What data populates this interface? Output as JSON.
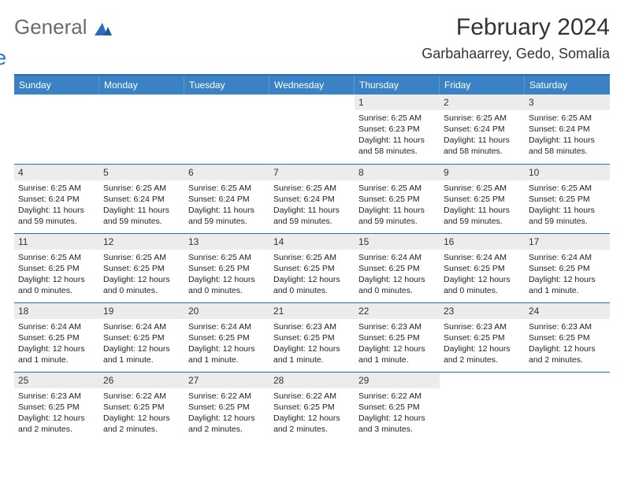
{
  "logo": {
    "text1": "General",
    "text2": "Blue",
    "accent": "#2a6db8",
    "gray": "#6b6b6b"
  },
  "title": "February 2024",
  "location": "Garbahaarrey, Gedo, Somalia",
  "header_bg": "#3b82c4",
  "border_color": "#2a6db8",
  "daynum_bg": "#ececec",
  "weekdays": [
    "Sunday",
    "Monday",
    "Tuesday",
    "Wednesday",
    "Thursday",
    "Friday",
    "Saturday"
  ],
  "days": [
    null,
    null,
    null,
    null,
    {
      "n": "1",
      "sr": "Sunrise: 6:25 AM",
      "ss": "Sunset: 6:23 PM",
      "dl": "Daylight: 11 hours and 58 minutes."
    },
    {
      "n": "2",
      "sr": "Sunrise: 6:25 AM",
      "ss": "Sunset: 6:24 PM",
      "dl": "Daylight: 11 hours and 58 minutes."
    },
    {
      "n": "3",
      "sr": "Sunrise: 6:25 AM",
      "ss": "Sunset: 6:24 PM",
      "dl": "Daylight: 11 hours and 58 minutes."
    },
    {
      "n": "4",
      "sr": "Sunrise: 6:25 AM",
      "ss": "Sunset: 6:24 PM",
      "dl": "Daylight: 11 hours and 59 minutes."
    },
    {
      "n": "5",
      "sr": "Sunrise: 6:25 AM",
      "ss": "Sunset: 6:24 PM",
      "dl": "Daylight: 11 hours and 59 minutes."
    },
    {
      "n": "6",
      "sr": "Sunrise: 6:25 AM",
      "ss": "Sunset: 6:24 PM",
      "dl": "Daylight: 11 hours and 59 minutes."
    },
    {
      "n": "7",
      "sr": "Sunrise: 6:25 AM",
      "ss": "Sunset: 6:24 PM",
      "dl": "Daylight: 11 hours and 59 minutes."
    },
    {
      "n": "8",
      "sr": "Sunrise: 6:25 AM",
      "ss": "Sunset: 6:25 PM",
      "dl": "Daylight: 11 hours and 59 minutes."
    },
    {
      "n": "9",
      "sr": "Sunrise: 6:25 AM",
      "ss": "Sunset: 6:25 PM",
      "dl": "Daylight: 11 hours and 59 minutes."
    },
    {
      "n": "10",
      "sr": "Sunrise: 6:25 AM",
      "ss": "Sunset: 6:25 PM",
      "dl": "Daylight: 11 hours and 59 minutes."
    },
    {
      "n": "11",
      "sr": "Sunrise: 6:25 AM",
      "ss": "Sunset: 6:25 PM",
      "dl": "Daylight: 12 hours and 0 minutes."
    },
    {
      "n": "12",
      "sr": "Sunrise: 6:25 AM",
      "ss": "Sunset: 6:25 PM",
      "dl": "Daylight: 12 hours and 0 minutes."
    },
    {
      "n": "13",
      "sr": "Sunrise: 6:25 AM",
      "ss": "Sunset: 6:25 PM",
      "dl": "Daylight: 12 hours and 0 minutes."
    },
    {
      "n": "14",
      "sr": "Sunrise: 6:25 AM",
      "ss": "Sunset: 6:25 PM",
      "dl": "Daylight: 12 hours and 0 minutes."
    },
    {
      "n": "15",
      "sr": "Sunrise: 6:24 AM",
      "ss": "Sunset: 6:25 PM",
      "dl": "Daylight: 12 hours and 0 minutes."
    },
    {
      "n": "16",
      "sr": "Sunrise: 6:24 AM",
      "ss": "Sunset: 6:25 PM",
      "dl": "Daylight: 12 hours and 0 minutes."
    },
    {
      "n": "17",
      "sr": "Sunrise: 6:24 AM",
      "ss": "Sunset: 6:25 PM",
      "dl": "Daylight: 12 hours and 1 minute."
    },
    {
      "n": "18",
      "sr": "Sunrise: 6:24 AM",
      "ss": "Sunset: 6:25 PM",
      "dl": "Daylight: 12 hours and 1 minute."
    },
    {
      "n": "19",
      "sr": "Sunrise: 6:24 AM",
      "ss": "Sunset: 6:25 PM",
      "dl": "Daylight: 12 hours and 1 minute."
    },
    {
      "n": "20",
      "sr": "Sunrise: 6:24 AM",
      "ss": "Sunset: 6:25 PM",
      "dl": "Daylight: 12 hours and 1 minute."
    },
    {
      "n": "21",
      "sr": "Sunrise: 6:23 AM",
      "ss": "Sunset: 6:25 PM",
      "dl": "Daylight: 12 hours and 1 minute."
    },
    {
      "n": "22",
      "sr": "Sunrise: 6:23 AM",
      "ss": "Sunset: 6:25 PM",
      "dl": "Daylight: 12 hours and 1 minute."
    },
    {
      "n": "23",
      "sr": "Sunrise: 6:23 AM",
      "ss": "Sunset: 6:25 PM",
      "dl": "Daylight: 12 hours and 2 minutes."
    },
    {
      "n": "24",
      "sr": "Sunrise: 6:23 AM",
      "ss": "Sunset: 6:25 PM",
      "dl": "Daylight: 12 hours and 2 minutes."
    },
    {
      "n": "25",
      "sr": "Sunrise: 6:23 AM",
      "ss": "Sunset: 6:25 PM",
      "dl": "Daylight: 12 hours and 2 minutes."
    },
    {
      "n": "26",
      "sr": "Sunrise: 6:22 AM",
      "ss": "Sunset: 6:25 PM",
      "dl": "Daylight: 12 hours and 2 minutes."
    },
    {
      "n": "27",
      "sr": "Sunrise: 6:22 AM",
      "ss": "Sunset: 6:25 PM",
      "dl": "Daylight: 12 hours and 2 minutes."
    },
    {
      "n": "28",
      "sr": "Sunrise: 6:22 AM",
      "ss": "Sunset: 6:25 PM",
      "dl": "Daylight: 12 hours and 2 minutes."
    },
    {
      "n": "29",
      "sr": "Sunrise: 6:22 AM",
      "ss": "Sunset: 6:25 PM",
      "dl": "Daylight: 12 hours and 3 minutes."
    },
    null,
    null
  ]
}
